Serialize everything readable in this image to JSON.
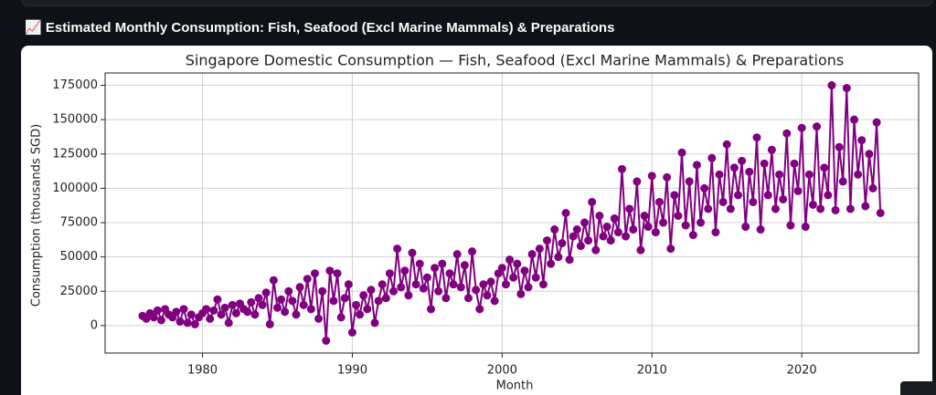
{
  "header": {
    "title": "📈 Estimated Monthly Consumption: Fish, Seafood (Excl Marine Mammals) & Preparations"
  },
  "chart_data": {
    "type": "line",
    "title": "Singapore Domestic Consumption — Fish, Seafood (Excl Marine Mammals) & Preparations",
    "x_label": "Month",
    "y_label": "Consumption (thousands SGD)",
    "color": "#800080",
    "grid": true,
    "xlim": [
      1973.5,
      2027.8
    ],
    "xticks": [
      1980,
      1990,
      2000,
      2010,
      2020
    ],
    "ylim": [
      -20000,
      184000
    ],
    "yticks": [
      0,
      25000,
      50000,
      75000,
      100000,
      125000,
      150000,
      175000
    ],
    "x": [
      1976,
      1976.25,
      1976.5,
      1976.75,
      1977,
      1977.25,
      1977.5,
      1977.75,
      1978,
      1978.25,
      1978.5,
      1978.75,
      1979,
      1979.25,
      1979.5,
      1979.75,
      1980,
      1980.25,
      1980.5,
      1980.75,
      1981,
      1981.25,
      1981.5,
      1981.75,
      1982,
      1982.25,
      1982.5,
      1982.75,
      1983,
      1983.25,
      1983.5,
      1983.75,
      1984,
      1984.25,
      1984.5,
      1984.75,
      1985,
      1985.25,
      1985.5,
      1985.75,
      1986,
      1986.25,
      1986.5,
      1986.75,
      1987,
      1987.25,
      1987.5,
      1987.75,
      1988,
      1988.25,
      1988.5,
      1988.75,
      1989,
      1989.25,
      1989.5,
      1989.75,
      1990,
      1990.25,
      1990.5,
      1990.75,
      1991,
      1991.25,
      1991.5,
      1991.75,
      1992,
      1992.25,
      1992.5,
      1992.75,
      1993,
      1993.25,
      1993.5,
      1993.75,
      1994,
      1994.25,
      1994.5,
      1994.75,
      1995,
      1995.25,
      1995.5,
      1995.75,
      1996,
      1996.25,
      1996.5,
      1996.75,
      1997,
      1997.25,
      1997.5,
      1997.75,
      1998,
      1998.25,
      1998.5,
      1998.75,
      1999,
      1999.25,
      1999.5,
      1999.75,
      2000,
      2000.25,
      2000.5,
      2000.75,
      2001,
      2001.25,
      2001.5,
      2001.75,
      2002,
      2002.25,
      2002.5,
      2002.75,
      2003,
      2003.25,
      2003.5,
      2003.75,
      2004,
      2004.25,
      2004.5,
      2004.75,
      2005,
      2005.25,
      2005.5,
      2005.75,
      2006,
      2006.25,
      2006.5,
      2006.75,
      2007,
      2007.25,
      2007.5,
      2007.75,
      2008,
      2008.25,
      2008.5,
      2008.75,
      2009,
      2009.25,
      2009.5,
      2009.75,
      2010,
      2010.25,
      2010.5,
      2010.75,
      2011,
      2011.25,
      2011.5,
      2011.75,
      2012,
      2012.25,
      2012.5,
      2012.75,
      2013,
      2013.25,
      2013.5,
      2013.75,
      2014,
      2014.25,
      2014.5,
      2014.75,
      2015,
      2015.25,
      2015.5,
      2015.75,
      2016,
      2016.25,
      2016.5,
      2016.75,
      2017,
      2017.25,
      2017.5,
      2017.75,
      2018,
      2018.25,
      2018.5,
      2018.75,
      2019,
      2019.25,
      2019.5,
      2019.75,
      2020,
      2020.25,
      2020.5,
      2020.75,
      2021,
      2021.25,
      2021.5,
      2021.75,
      2022,
      2022.25,
      2022.5,
      2022.75,
      2023,
      2023.25,
      2023.5,
      2023.75,
      2024,
      2024.25,
      2024.5,
      2024.75,
      2025,
      2025.25
    ],
    "values": [
      7000,
      5000,
      9000,
      6000,
      11000,
      4000,
      12000,
      8000,
      6000,
      10000,
      3000,
      12000,
      2000,
      8000,
      1000,
      6000,
      9000,
      12000,
      5000,
      11000,
      19000,
      8000,
      13000,
      2000,
      15000,
      9000,
      16000,
      12000,
      10000,
      17000,
      8000,
      20000,
      15000,
      24000,
      1000,
      33000,
      13000,
      19000,
      10000,
      25000,
      18000,
      8000,
      28000,
      15000,
      34000,
      12000,
      38000,
      5000,
      25000,
      -11000,
      40000,
      18000,
      38000,
      6000,
      20000,
      30000,
      -5000,
      15000,
      8000,
      22000,
      12000,
      26000,
      2000,
      18000,
      30000,
      20000,
      38000,
      25000,
      56000,
      28000,
      40000,
      22000,
      53000,
      30000,
      45000,
      27000,
      35000,
      12000,
      42000,
      25000,
      45000,
      20000,
      38000,
      30000,
      52000,
      28000,
      44000,
      20000,
      54000,
      26000,
      12000,
      30000,
      22000,
      32000,
      18000,
      38000,
      42000,
      30000,
      48000,
      35000,
      45000,
      23000,
      40000,
      28000,
      52000,
      35000,
      56000,
      30000,
      62000,
      45000,
      70000,
      50000,
      60000,
      82000,
      48000,
      65000,
      70000,
      58000,
      75000,
      62000,
      90000,
      55000,
      80000,
      65000,
      72000,
      62000,
      78000,
      68000,
      114000,
      65000,
      85000,
      70000,
      105000,
      55000,
      80000,
      72000,
      109000,
      68000,
      90000,
      75000,
      108000,
      56000,
      95000,
      80000,
      126000,
      73000,
      105000,
      66000,
      117000,
      75000,
      100000,
      85000,
      122000,
      68000,
      110000,
      90000,
      132000,
      85000,
      115000,
      95000,
      120000,
      72000,
      112000,
      90000,
      137000,
      70000,
      118000,
      95000,
      128000,
      85000,
      110000,
      92000,
      140000,
      73000,
      118000,
      98000,
      144000,
      72000,
      110000,
      88000,
      145000,
      85000,
      115000,
      95000,
      175000,
      84000,
      130000,
      105000,
      173000,
      85000,
      150000,
      110000,
      135000,
      87000,
      125000,
      100000,
      148000,
      82000
    ]
  }
}
